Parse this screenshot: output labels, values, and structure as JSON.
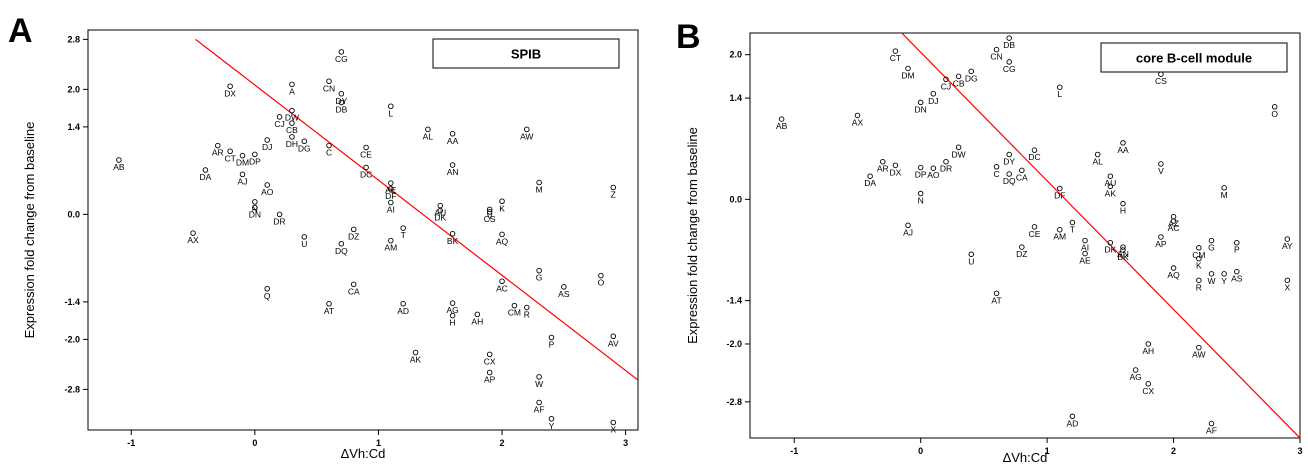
{
  "chart_data": [
    {
      "type": "scatter",
      "panel": "A",
      "title": "SPIB",
      "xlabel": "ΔVh:Cd",
      "ylabel": "Expression fold  change from baseline",
      "xlim": [
        -1.35,
        3.1
      ],
      "ylim": [
        -3.45,
        2.95
      ],
      "xticks": [
        -1,
        0,
        1,
        2,
        3
      ],
      "yticks": [
        2.8,
        2.0,
        1.4,
        0.0,
        -1.4,
        -2.0,
        -2.8
      ],
      "ytick_labels": [
        "2.8",
        "2.0",
        "1.4",
        "0.0",
        "-1.4",
        "-2.0",
        "-2.8"
      ],
      "fit_line": {
        "x": [
          -0.48,
          3.1
        ],
        "y": [
          2.8,
          -2.65
        ],
        "color": "#ff0000"
      },
      "points": [
        {
          "label": "CG",
          "x": 0.7,
          "y": 2.6
        },
        {
          "label": "DX",
          "x": -0.2,
          "y": 2.05
        },
        {
          "label": "A",
          "x": 0.3,
          "y": 2.08
        },
        {
          "label": "CN",
          "x": 0.6,
          "y": 2.13
        },
        {
          "label": "DY",
          "x": 0.7,
          "y": 1.93
        },
        {
          "label": "DB",
          "x": 0.7,
          "y": 1.79
        },
        {
          "label": "L",
          "x": 1.1,
          "y": 1.73
        },
        {
          "label": "DW",
          "x": 0.3,
          "y": 1.66
        },
        {
          "label": "CJ",
          "x": 0.2,
          "y": 1.56
        },
        {
          "label": "CB",
          "x": 0.3,
          "y": 1.46
        },
        {
          "label": "AL",
          "x": 1.4,
          "y": 1.36
        },
        {
          "label": "AW",
          "x": 2.2,
          "y": 1.36
        },
        {
          "label": "AA",
          "x": 1.6,
          "y": 1.29
        },
        {
          "label": "DH",
          "x": 0.3,
          "y": 1.24
        },
        {
          "label": "DJ",
          "x": 0.1,
          "y": 1.19
        },
        {
          "label": "DG",
          "x": 0.4,
          "y": 1.17
        },
        {
          "label": "AR",
          "x": -0.3,
          "y": 1.1
        },
        {
          "label": "C",
          "x": 0.6,
          "y": 1.1
        },
        {
          "label": "CE",
          "x": 0.9,
          "y": 1.07
        },
        {
          "label": "CT",
          "x": -0.2,
          "y": 1.01
        },
        {
          "label": "DP",
          "x": 0.0,
          "y": 0.96
        },
        {
          "label": "DM",
          "x": -0.1,
          "y": 0.94
        },
        {
          "label": "AB",
          "x": -1.1,
          "y": 0.87
        },
        {
          "label": "AN",
          "x": 1.6,
          "y": 0.79
        },
        {
          "label": "DC",
          "x": 0.9,
          "y": 0.75
        },
        {
          "label": "DA",
          "x": -0.4,
          "y": 0.71
        },
        {
          "label": "AJ",
          "x": -0.1,
          "y": 0.64
        },
        {
          "label": "M",
          "x": 2.3,
          "y": 0.51
        },
        {
          "label": "AE",
          "x": 1.1,
          "y": 0.5
        },
        {
          "label": "AO",
          "x": 0.1,
          "y": 0.47
        },
        {
          "label": "Z",
          "x": 2.9,
          "y": 0.43
        },
        {
          "label": "DF",
          "x": 1.1,
          "y": 0.41
        },
        {
          "label": "K",
          "x": 2.0,
          "y": 0.21
        },
        {
          "label": "AI",
          "x": 1.1,
          "y": 0.19
        },
        {
          "label": "N",
          "x": 0.0,
          "y": 0.2
        },
        {
          "label": "AU",
          "x": 1.5,
          "y": 0.14
        },
        {
          "label": "DN",
          "x": 0.0,
          "y": 0.11
        },
        {
          "label": "V",
          "x": 1.9,
          "y": 0.08
        },
        {
          "label": "CS",
          "x": 1.9,
          "y": 0.04
        },
        {
          "label": "DK",
          "x": 1.5,
          "y": 0.06
        },
        {
          "label": "DR",
          "x": 0.2,
          "y": 0.0
        },
        {
          "label": "AX",
          "x": -0.5,
          "y": -0.3
        },
        {
          "label": "DZ",
          "x": 0.8,
          "y": -0.24
        },
        {
          "label": "T",
          "x": 1.2,
          "y": -0.22
        },
        {
          "label": "U",
          "x": 0.4,
          "y": -0.36
        },
        {
          "label": "BK",
          "x": 1.6,
          "y": -0.31
        },
        {
          "label": "AM",
          "x": 1.1,
          "y": -0.42
        },
        {
          "label": "DQ",
          "x": 0.7,
          "y": -0.47
        },
        {
          "label": "AQ",
          "x": 2.0,
          "y": -0.32
        },
        {
          "label": "G",
          "x": 2.3,
          "y": -0.9
        },
        {
          "label": "O",
          "x": 2.8,
          "y": -0.98
        },
        {
          "label": "AC",
          "x": 2.0,
          "y": -1.07
        },
        {
          "label": "CA",
          "x": 0.8,
          "y": -1.12
        },
        {
          "label": "AS",
          "x": 2.5,
          "y": -1.16
        },
        {
          "label": "Q",
          "x": 0.1,
          "y": -1.19
        },
        {
          "label": "AT",
          "x": 0.6,
          "y": -1.43
        },
        {
          "label": "AD",
          "x": 1.2,
          "y": -1.43
        },
        {
          "label": "AG",
          "x": 1.6,
          "y": -1.42
        },
        {
          "label": "CM",
          "x": 2.1,
          "y": -1.46
        },
        {
          "label": "R",
          "x": 2.2,
          "y": -1.49
        },
        {
          "label": "AH",
          "x": 1.8,
          "y": -1.6
        },
        {
          "label": "H",
          "x": 1.6,
          "y": -1.62
        },
        {
          "label": "AV",
          "x": 2.9,
          "y": -1.95
        },
        {
          "label": "P",
          "x": 2.4,
          "y": -1.97
        },
        {
          "label": "AK",
          "x": 1.3,
          "y": -2.21
        },
        {
          "label": "CX",
          "x": 1.9,
          "y": -2.24
        },
        {
          "label": "AP",
          "x": 1.9,
          "y": -2.53
        },
        {
          "label": "W",
          "x": 2.3,
          "y": -2.6
        },
        {
          "label": "AF",
          "x": 2.3,
          "y": -3.01
        },
        {
          "label": "Y",
          "x": 2.4,
          "y": -3.27
        },
        {
          "label": "X",
          "x": 2.9,
          "y": -3.33
        }
      ]
    },
    {
      "type": "scatter",
      "panel": "B",
      "title": "core B-cell module",
      "xlabel": "ΔVh:Cd",
      "ylabel": "Expression fold  change from baseline",
      "xlim": [
        -1.35,
        3.0
      ],
      "ylim": [
        -3.3,
        2.3
      ],
      "xticks": [
        -1,
        0,
        1,
        2,
        3
      ],
      "yticks": [
        2.0,
        1.4,
        0.0,
        -1.4,
        -2.0,
        -2.8
      ],
      "ytick_labels": [
        "2.0",
        "1.4",
        "0.0",
        "-1.4",
        "-2.0",
        "-2.8"
      ],
      "fit_line": {
        "x": [
          -0.15,
          3.0
        ],
        "y": [
          2.3,
          -3.3
        ],
        "color": "#ff0000"
      },
      "points": [
        {
          "label": "DB",
          "x": 0.7,
          "y": 2.23
        },
        {
          "label": "CT",
          "x": -0.2,
          "y": 2.05
        },
        {
          "label": "CN",
          "x": 0.6,
          "y": 2.07
        },
        {
          "label": "CG",
          "x": 0.7,
          "y": 1.9
        },
        {
          "label": "DM",
          "x": -0.1,
          "y": 1.81
        },
        {
          "label": "DG",
          "x": 0.4,
          "y": 1.77
        },
        {
          "label": "CS",
          "x": 1.9,
          "y": 1.73
        },
        {
          "label": "CB",
          "x": 0.3,
          "y": 1.7
        },
        {
          "label": "CJ",
          "x": 0.2,
          "y": 1.66
        },
        {
          "label": "L",
          "x": 1.1,
          "y": 1.55
        },
        {
          "label": "DJ",
          "x": 0.1,
          "y": 1.46
        },
        {
          "label": "DN",
          "x": 0.0,
          "y": 1.34
        },
        {
          "label": "O",
          "x": 2.8,
          "y": 1.28
        },
        {
          "label": "AB",
          "x": -1.1,
          "y": 1.11
        },
        {
          "label": "AX",
          "x": -0.5,
          "y": 1.16
        },
        {
          "label": "AA",
          "x": 1.6,
          "y": 0.78
        },
        {
          "label": "DW",
          "x": 0.3,
          "y": 0.72
        },
        {
          "label": "DY",
          "x": 0.7,
          "y": 0.62
        },
        {
          "label": "DC",
          "x": 0.9,
          "y": 0.68
        },
        {
          "label": "AL",
          "x": 1.4,
          "y": 0.62
        },
        {
          "label": "DR",
          "x": 0.2,
          "y": 0.52
        },
        {
          "label": "AR",
          "x": -0.3,
          "y": 0.52
        },
        {
          "label": "V",
          "x": 1.9,
          "y": 0.49
        },
        {
          "label": "DX",
          "x": -0.2,
          "y": 0.47
        },
        {
          "label": "C",
          "x": 0.6,
          "y": 0.45
        },
        {
          "label": "CA",
          "x": 0.8,
          "y": 0.4
        },
        {
          "label": "DP",
          "x": 0.0,
          "y": 0.44
        },
        {
          "label": "AO",
          "x": 0.1,
          "y": 0.43
        },
        {
          "label": "DQ",
          "x": 0.7,
          "y": 0.35
        },
        {
          "label": "DA",
          "x": -0.4,
          "y": 0.32
        },
        {
          "label": "AU",
          "x": 1.5,
          "y": 0.32
        },
        {
          "label": "AK",
          "x": 1.5,
          "y": 0.18
        },
        {
          "label": "M",
          "x": 2.4,
          "y": 0.16
        },
        {
          "label": "DF",
          "x": 1.1,
          "y": 0.15
        },
        {
          "label": "N",
          "x": 0.0,
          "y": 0.08
        },
        {
          "label": "H",
          "x": 1.6,
          "y": -0.06
        },
        {
          "label": "AZ",
          "x": 2.0,
          "y": -0.24
        },
        {
          "label": "AC",
          "x": 2.0,
          "y": -0.3
        },
        {
          "label": "AJ",
          "x": -0.1,
          "y": -0.36
        },
        {
          "label": "CE",
          "x": 0.9,
          "y": -0.38
        },
        {
          "label": "T",
          "x": 1.2,
          "y": -0.32
        },
        {
          "label": "AM",
          "x": 1.1,
          "y": -0.42
        },
        {
          "label": "AP",
          "x": 1.9,
          "y": -0.52
        },
        {
          "label": "AI",
          "x": 1.3,
          "y": -0.57
        },
        {
          "label": "DK",
          "x": 1.5,
          "y": -0.6
        },
        {
          "label": "G",
          "x": 2.3,
          "y": -0.57
        },
        {
          "label": "AY",
          "x": 2.9,
          "y": -0.55
        },
        {
          "label": "P",
          "x": 2.5,
          "y": -0.6
        },
        {
          "label": "DZ",
          "x": 0.8,
          "y": -0.66
        },
        {
          "label": "AN",
          "x": 1.6,
          "y": -0.66
        },
        {
          "label": "CM",
          "x": 2.2,
          "y": -0.67
        },
        {
          "label": "BK",
          "x": 1.6,
          "y": -0.7
        },
        {
          "label": "AE",
          "x": 1.3,
          "y": -0.75
        },
        {
          "label": "U",
          "x": 0.4,
          "y": -0.76
        },
        {
          "label": "K",
          "x": 2.2,
          "y": -0.82
        },
        {
          "label": "AQ",
          "x": 2.0,
          "y": -0.95
        },
        {
          "label": "AS",
          "x": 2.5,
          "y": -1.0
        },
        {
          "label": "W",
          "x": 2.3,
          "y": -1.03
        },
        {
          "label": "Y",
          "x": 2.4,
          "y": -1.03
        },
        {
          "label": "R",
          "x": 2.2,
          "y": -1.12
        },
        {
          "label": "X",
          "x": 2.9,
          "y": -1.12
        },
        {
          "label": "AT",
          "x": 0.6,
          "y": -1.3
        },
        {
          "label": "AH",
          "x": 1.8,
          "y": -2.0
        },
        {
          "label": "AW",
          "x": 2.2,
          "y": -2.05
        },
        {
          "label": "AG",
          "x": 1.7,
          "y": -2.36
        },
        {
          "label": "CX",
          "x": 1.8,
          "y": -2.55
        },
        {
          "label": "AD",
          "x": 1.2,
          "y": -3.0
        },
        {
          "label": "AF",
          "x": 2.3,
          "y": -3.1
        }
      ]
    }
  ]
}
